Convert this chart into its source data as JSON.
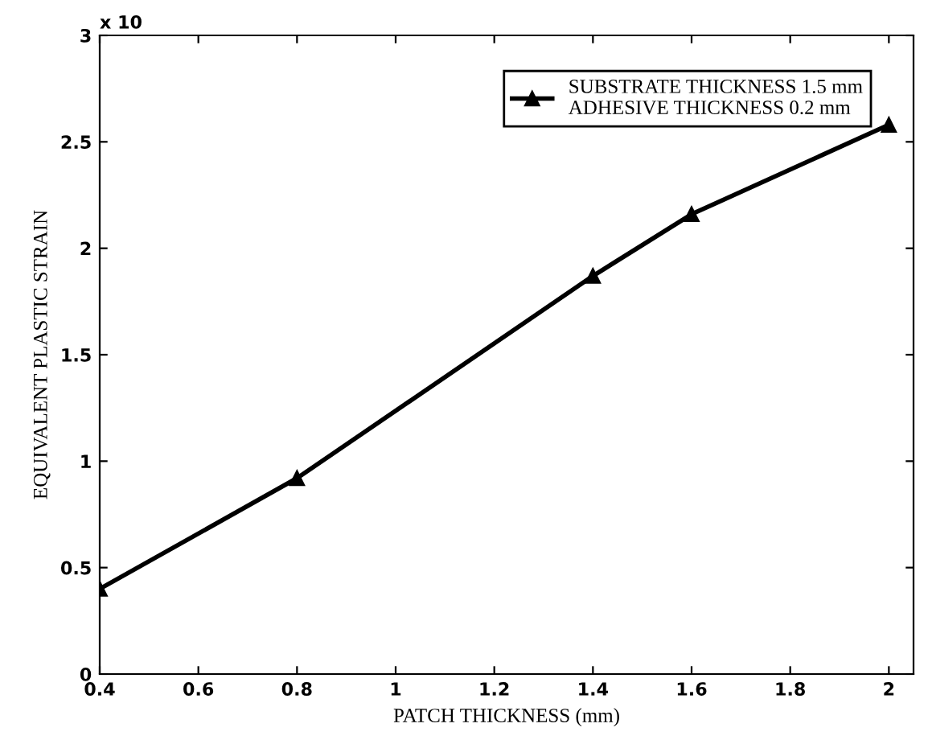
{
  "chart_data": {
    "type": "line",
    "xlabel": "PATCH THICKNESS (mm)",
    "ylabel": "EQUIVALENT PLASTIC STRAIN",
    "annotations": [
      "x 10"
    ],
    "x": [
      0.4,
      0.8,
      1.4,
      1.6,
      2.0
    ],
    "series": [
      {
        "name": "SUBSTRATE THICKNESS 1.5 mm\nADHESIVE THICKNESS 0.2 mm",
        "color": "#000000",
        "values": [
          0.4,
          0.92,
          1.87,
          2.16,
          2.58
        ]
      }
    ],
    "xlim": [
      0.4,
      2.05
    ],
    "xticks": [
      0.4,
      0.6,
      0.8,
      1,
      1.2,
      1.4,
      1.6,
      1.8,
      2
    ],
    "ylim": [
      0,
      3
    ],
    "yticks": [
      0,
      0.5,
      1,
      1.5,
      2,
      2.5,
      3
    ],
    "marker": "triangle",
    "line_style": "solid",
    "legend": "top right",
    "grid": false
  }
}
